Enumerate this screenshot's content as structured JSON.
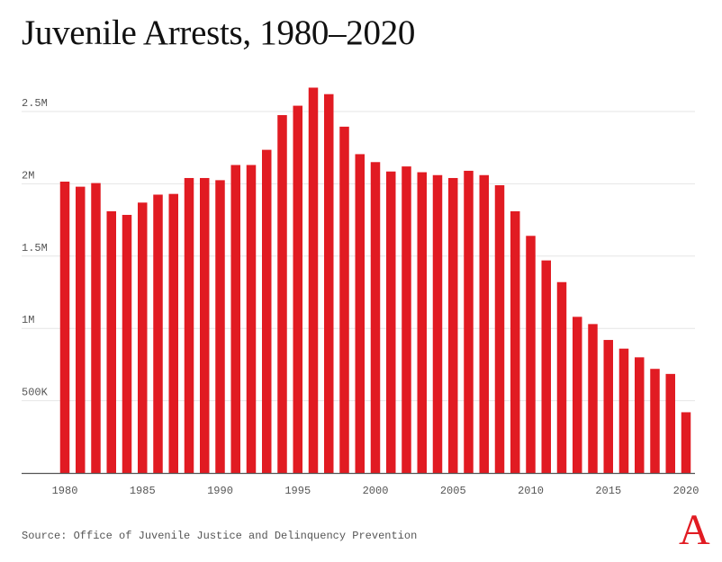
{
  "title": "Juvenile Arrests, 1980–2020",
  "source": "Source: Office of Juvenile Justice and Delinquency Prevention",
  "logo": "A",
  "colors": {
    "bar": "#e11b22",
    "grid": "#e6e6e6",
    "axis": "#555555",
    "text": "#111111"
  },
  "chart_data": {
    "type": "bar",
    "title": "Juvenile Arrests, 1980–2020",
    "xlabel": "",
    "ylabel": "",
    "x": [
      1980,
      1981,
      1982,
      1983,
      1984,
      1985,
      1986,
      1987,
      1988,
      1989,
      1990,
      1991,
      1992,
      1993,
      1994,
      1995,
      1996,
      1997,
      1998,
      1999,
      2000,
      2001,
      2002,
      2003,
      2004,
      2005,
      2006,
      2007,
      2008,
      2009,
      2010,
      2011,
      2012,
      2013,
      2014,
      2015,
      2016,
      2017,
      2018,
      2019,
      2020
    ],
    "values": [
      2015000,
      1980000,
      2005000,
      1810000,
      1785000,
      1870000,
      1925000,
      1930000,
      2040000,
      2040000,
      2025000,
      2130000,
      2130000,
      2235000,
      2475000,
      2540000,
      2665000,
      2620000,
      2395000,
      2205000,
      2150000,
      2085000,
      2120000,
      2080000,
      2060000,
      2040000,
      2090000,
      2060000,
      1990000,
      1810000,
      1640000,
      1470000,
      1320000,
      1080000,
      1030000,
      920000,
      860000,
      800000,
      720000,
      685000,
      420000
    ],
    "ylim": [
      0,
      2500000
    ],
    "yticks": [
      500000,
      1000000,
      1500000,
      2000000,
      2500000
    ],
    "ytick_labels": [
      "500K",
      "1M",
      "1.5M",
      "2M",
      "2.5M"
    ],
    "xticks": [
      1980,
      1985,
      1990,
      1995,
      2000,
      2005,
      2010,
      2015,
      2020
    ],
    "xtick_labels": [
      "1980",
      "1985",
      "1990",
      "1995",
      "2000",
      "2005",
      "2010",
      "2015",
      "2020"
    ],
    "grid": true,
    "legend": "none"
  }
}
